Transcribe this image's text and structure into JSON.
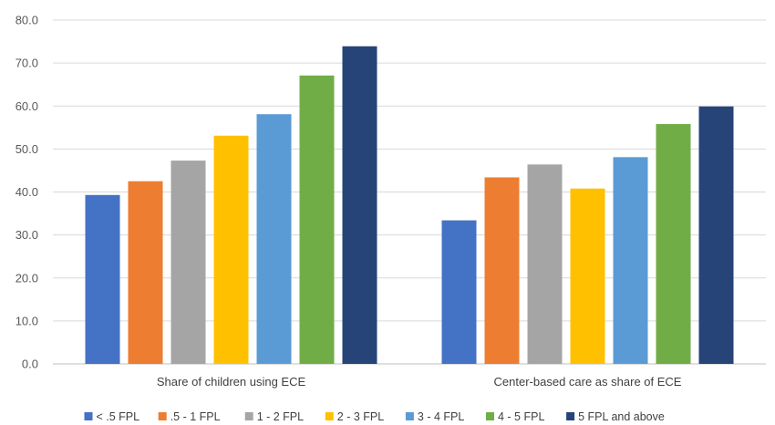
{
  "chart_data": {
    "type": "bar",
    "title": "",
    "xlabel": "",
    "ylabel": "",
    "ylim": [
      0,
      80
    ],
    "yticks": [
      "0.0",
      "10.0",
      "20.0",
      "30.0",
      "40.0",
      "50.0",
      "60.0",
      "70.0",
      "80.0"
    ],
    "grid": true,
    "legend_position": "bottom",
    "categories": [
      "Share of children using ECE",
      "Center-based care as share of ECE"
    ],
    "series": [
      {
        "name": "< .5 FPL",
        "color": "#4472c4",
        "values": [
          39.3,
          33.4
        ]
      },
      {
        "name": ".5 - 1 FPL",
        "color": "#ed7d31",
        "values": [
          42.5,
          43.4
        ]
      },
      {
        "name": "1 - 2 FPL",
        "color": "#a5a5a5",
        "values": [
          47.3,
          46.4
        ]
      },
      {
        "name": "2 - 3 FPL",
        "color": "#ffc000",
        "values": [
          53.1,
          40.8
        ]
      },
      {
        "name": "3 - 4 FPL",
        "color": "#5b9bd5",
        "values": [
          58.1,
          48.1
        ]
      },
      {
        "name": "4 - 5 FPL",
        "color": "#70ad47",
        "values": [
          67.1,
          55.8
        ]
      },
      {
        "name": "5 FPL  and above",
        "color": "#264478",
        "values": [
          73.9,
          59.9
        ]
      }
    ]
  }
}
